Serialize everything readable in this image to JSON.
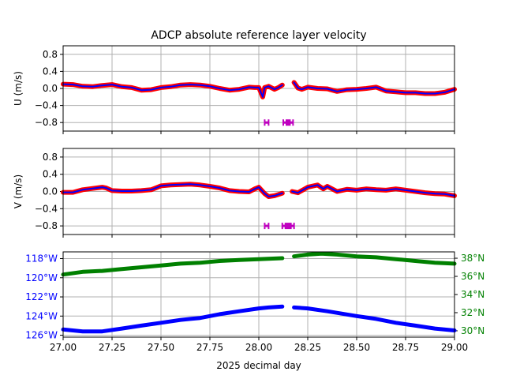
{
  "colors": {
    "u_outer": "#ff0000",
    "u_inner": "#0000ff",
    "flag": "#bf00bf",
    "lon": "#0000ff",
    "lat": "#008000",
    "grid": "#b0b0b0",
    "axis": "#000000"
  },
  "chart_data": {
    "title": "ADCP absolute reference layer velocity",
    "xlabel": "2025 decimal day",
    "xlim": [
      27.0,
      29.0
    ],
    "xticks": [
      27.0,
      27.25,
      27.5,
      27.75,
      28.0,
      28.25,
      28.5,
      28.75,
      29.0
    ],
    "xtick_labels": [
      "27.00",
      "27.25",
      "27.50",
      "27.75",
      "28.00",
      "28.25",
      "28.50",
      "28.75",
      "29.00"
    ],
    "grid": true,
    "panels": [
      {
        "type": "scatter",
        "ylabel": "U (m/s)",
        "ylim": [
          -1.0,
          1.0
        ],
        "yticks": [
          0.8,
          0.4,
          0.0,
          -0.4,
          -0.8
        ],
        "ytick_labels": [
          "0.8",
          "0.4",
          "0.0",
          "−0.4",
          "−0.8"
        ],
        "series": [
          {
            "x": [
              27.0,
              27.05,
              27.1,
              27.15,
              27.2,
              27.25,
              27.3,
              27.35,
              27.4,
              27.45,
              27.5,
              27.55,
              27.6,
              27.65,
              27.7,
              27.75,
              27.8,
              27.85,
              27.9,
              27.95,
              27.98,
              28.0,
              28.02,
              28.03,
              28.05,
              28.08,
              28.1,
              28.12,
              null,
              28.18,
              28.2,
              28.22,
              28.25,
              28.3,
              28.35,
              28.4,
              28.45,
              28.5,
              28.55,
              28.6,
              28.65,
              28.7,
              28.75,
              28.8,
              28.85,
              28.9,
              28.95,
              29.0
            ],
            "y": [
              0.1,
              0.09,
              0.05,
              0.04,
              0.07,
              0.09,
              0.04,
              0.02,
              -0.04,
              -0.03,
              0.02,
              0.04,
              0.08,
              0.09,
              0.08,
              0.05,
              0.0,
              -0.04,
              -0.02,
              0.03,
              0.02,
              0.02,
              -0.2,
              0.02,
              0.05,
              -0.02,
              0.02,
              0.08,
              null,
              0.14,
              0.01,
              -0.02,
              0.03,
              0.0,
              -0.01,
              -0.07,
              -0.03,
              -0.02,
              0.0,
              0.03,
              -0.06,
              -0.08,
              -0.1,
              -0.1,
              -0.12,
              -0.12,
              -0.09,
              -0.02
            ]
          }
        ],
        "flags": [
          {
            "x": [
              28.03,
              28.05
            ]
          },
          {
            "x": [
              28.125,
              28.175
            ]
          }
        ],
        "flag_value": -0.8
      },
      {
        "type": "scatter",
        "ylabel": "V (m/s)",
        "ylim": [
          -1.0,
          1.0
        ],
        "yticks": [
          0.8,
          0.4,
          0.0,
          -0.4,
          -0.8
        ],
        "ytick_labels": [
          "0.8",
          "0.4",
          "0.0",
          "−0.4",
          "−0.8"
        ],
        "series": [
          {
            "x": [
              27.0,
              27.05,
              27.1,
              27.15,
              27.2,
              27.22,
              27.25,
              27.3,
              27.35,
              27.4,
              27.45,
              27.5,
              27.55,
              27.6,
              27.65,
              27.7,
              27.75,
              27.8,
              27.85,
              27.9,
              27.95,
              27.98,
              28.0,
              28.03,
              28.05,
              28.08,
              28.1,
              28.12,
              null,
              28.17,
              28.2,
              28.25,
              28.3,
              28.33,
              28.35,
              28.4,
              28.45,
              28.5,
              28.55,
              28.6,
              28.65,
              28.7,
              28.75,
              28.8,
              28.85,
              28.9,
              28.95,
              29.0
            ],
            "y": [
              -0.02,
              -0.02,
              0.04,
              0.07,
              0.1,
              0.08,
              0.02,
              0.01,
              0.01,
              0.02,
              0.04,
              0.13,
              0.15,
              0.16,
              0.17,
              0.15,
              0.12,
              0.08,
              0.02,
              0.0,
              -0.01,
              0.06,
              0.1,
              -0.05,
              -0.12,
              -0.1,
              -0.07,
              -0.04,
              null,
              0.0,
              -0.03,
              0.1,
              0.15,
              0.06,
              0.12,
              0.0,
              0.05,
              0.03,
              0.06,
              0.04,
              0.03,
              0.06,
              0.03,
              0.0,
              -0.03,
              -0.05,
              -0.06,
              -0.1
            ]
          }
        ],
        "flags": [
          {
            "x": [
              28.03,
              28.05
            ]
          },
          {
            "x": [
              28.12,
              28.18
            ]
          }
        ],
        "flag_value": -0.8
      },
      {
        "type": "scatter",
        "ylim_left": [
          -126.2,
          -117.3
        ],
        "yticks_left": [
          -118,
          -120,
          -122,
          -124,
          -126
        ],
        "ytick_labels_left": [
          "118°W",
          "120°W",
          "122°W",
          "124°W",
          "126°W"
        ],
        "ylim_right": [
          29.3,
          38.7
        ],
        "yticks_right": [
          38,
          36,
          34,
          32,
          30
        ],
        "ytick_labels_right": [
          "38°N",
          "36°N",
          "34°N",
          "32°N",
          "30°N"
        ],
        "lon": {
          "x": [
            27.0,
            27.1,
            27.2,
            27.3,
            27.4,
            27.5,
            27.6,
            27.65,
            27.7,
            27.8,
            27.9,
            28.0,
            28.05,
            28.12,
            null,
            28.18,
            28.25,
            28.35,
            28.5,
            28.6,
            28.7,
            28.8,
            28.9,
            29.0
          ],
          "y": [
            -125.4,
            -125.6,
            -125.6,
            -125.3,
            -125.0,
            -124.7,
            -124.4,
            -124.3,
            -124.2,
            -123.8,
            -123.5,
            -123.2,
            -123.1,
            -123.0,
            null,
            -123.1,
            -123.2,
            -123.5,
            -124.0,
            -124.3,
            -124.7,
            -125.0,
            -125.3,
            -125.5
          ]
        },
        "lat": {
          "x": [
            27.0,
            27.1,
            27.2,
            27.3,
            27.4,
            27.5,
            27.6,
            27.7,
            27.8,
            27.9,
            28.0,
            28.12,
            null,
            28.18,
            28.25,
            28.32,
            28.4,
            28.5,
            28.6,
            28.7,
            28.8,
            28.9,
            29.0
          ],
          "y": [
            36.2,
            36.5,
            36.6,
            36.8,
            37.0,
            37.2,
            37.4,
            37.5,
            37.7,
            37.8,
            37.9,
            38.0,
            null,
            38.2,
            38.4,
            38.5,
            38.4,
            38.2,
            38.1,
            37.9,
            37.7,
            37.5,
            37.4
          ]
        }
      }
    ]
  }
}
